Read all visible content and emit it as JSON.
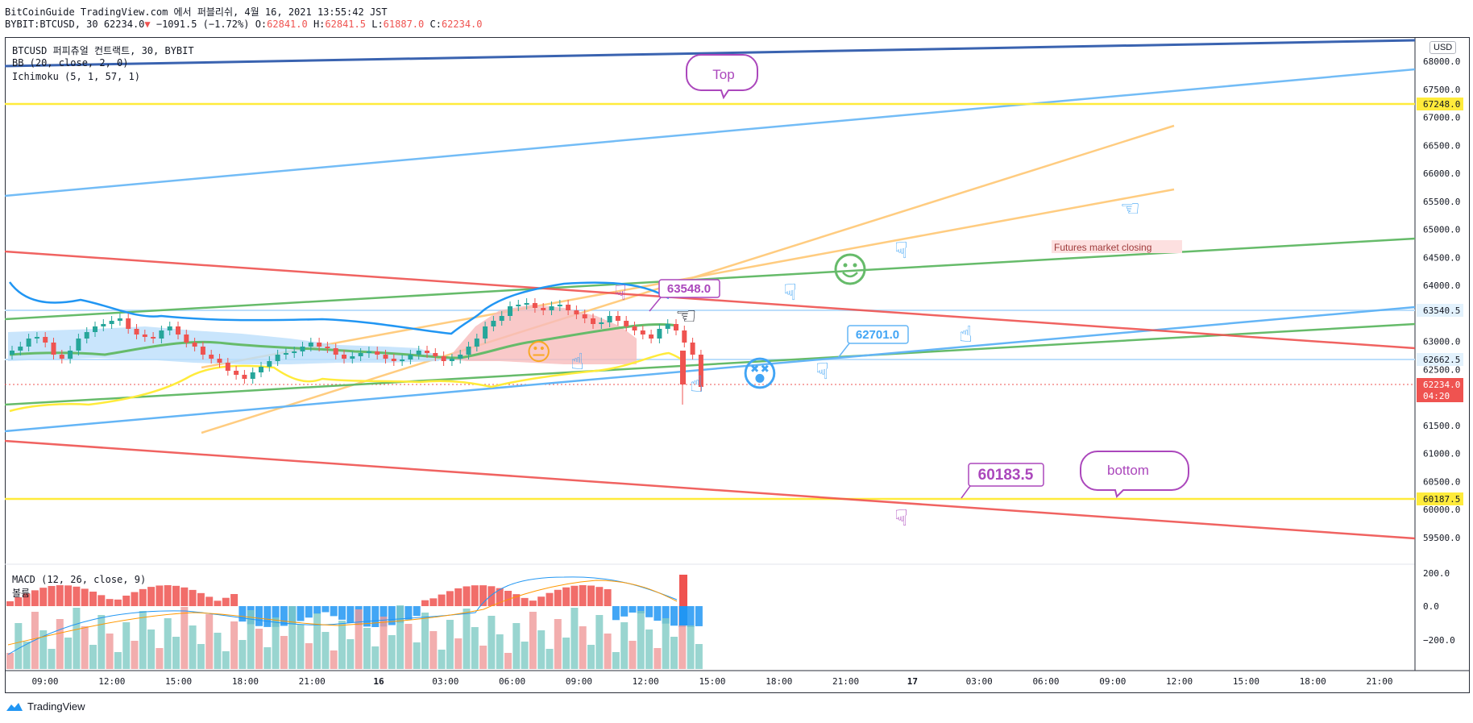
{
  "header": {
    "line1": "BitCoinGuide TradingView.com 에서 퍼블리쉬, 4월 16, 2021 13:55:42 JST",
    "symbol": "BYBIT:BTCUSD, 30 62234.0",
    "change_arrow": "▼",
    "change": "−1091.5 (−1.72%)",
    "o_label": "O:",
    "o_val": "62841.0",
    "h_label": "H:",
    "h_val": "62841.5",
    "l_label": "L:",
    "l_val": "61887.0",
    "c_label": "C:",
    "c_val": "62234.0"
  },
  "legend": {
    "title": "BTCUSD 퍼피츄얼 컨트랙트, 30, BYBIT",
    "bb": "BB (20, close, 2, 0)",
    "ichimoku": "Ichimoku (5, 1, 57, 1)",
    "macd": "MACD (12, 26, close, 9)",
    "volume": "볼륨"
  },
  "price_axis": {
    "currency": "USD",
    "ticks": [
      "68000.0",
      "67500.0",
      "67000.0",
      "66500.0",
      "66000.0",
      "65500.0",
      "65000.0",
      "64500.0",
      "64000.0",
      "63500.0",
      "63000.0",
      "62500.0",
      "62000.0",
      "61500.0",
      "61000.0",
      "60500.0",
      "60000.0",
      "59500.0"
    ],
    "tags": [
      {
        "label": "67248.0",
        "kind": "yellow"
      },
      {
        "label": "63540.5",
        "kind": "light"
      },
      {
        "label": "62662.5",
        "kind": "light"
      },
      {
        "label": "62234.0",
        "kind": "red"
      },
      {
        "label": "04:20",
        "kind": "red"
      },
      {
        "label": "60187.5",
        "kind": "yellow"
      }
    ]
  },
  "macd_axis": {
    "ticks": [
      "200.0",
      "0.0",
      "−200.0"
    ]
  },
  "time_axis": {
    "labels": [
      "09:00",
      "12:00",
      "15:00",
      "18:00",
      "21:00",
      "16",
      "03:00",
      "06:00",
      "09:00",
      "12:00",
      "15:00",
      "18:00",
      "21:00",
      "17",
      "03:00",
      "06:00",
      "09:00",
      "12:00",
      "15:00",
      "18:00",
      "21:00"
    ]
  },
  "annotations": {
    "top": "Top",
    "bottom": "bottom",
    "futures": "Futures market closing",
    "label_63548": "63548.0",
    "label_62701": "62701.0",
    "label_60183": "60183.5"
  },
  "brand": {
    "name": "TradingView"
  },
  "colors": {
    "up": "#26a69a",
    "down": "#ef5350",
    "bb": "#2196f3",
    "yellow": "#ffeb3b",
    "orange": "#ffcc80",
    "green": "#66bb6a",
    "blue_light": "#64b5f6",
    "navy": "#3a63b0",
    "purple": "#ab47bc"
  }
}
